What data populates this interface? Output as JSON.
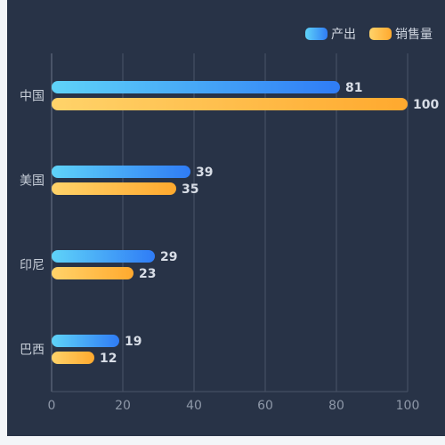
{
  "chart_data": {
    "type": "bar",
    "orientation": "horizontal",
    "categories": [
      "中国",
      "美国",
      "印尼",
      "巴西"
    ],
    "series": [
      {
        "name": "产出",
        "values": [
          81,
          39,
          29,
          19
        ],
        "color_start": "#5fd3f8",
        "color_end": "#2f7cf6"
      },
      {
        "name": "销售量",
        "values": [
          100,
          35,
          23,
          12
        ],
        "color_start": "#ffd36a",
        "color_end": "#ffa92e"
      }
    ],
    "x_ticks": [
      "0",
      "20",
      "40",
      "60",
      "80",
      "100"
    ],
    "xlim": [
      0,
      100
    ],
    "grid": true,
    "legend_position": "top-right",
    "title": "",
    "xlabel": "",
    "ylabel": ""
  },
  "colors": {
    "panel_background": "#283347",
    "page_background": "#f3f5f8",
    "grid": "#4a5568"
  }
}
